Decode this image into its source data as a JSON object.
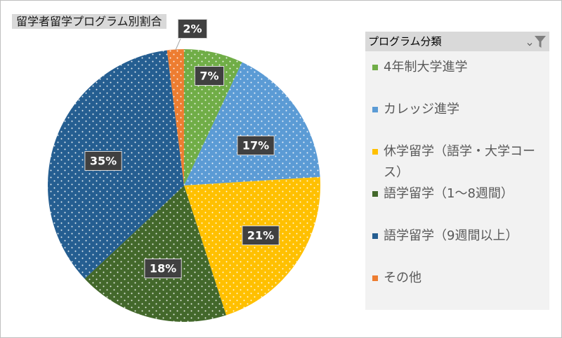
{
  "chart_data": {
    "type": "pie",
    "title": "留学者留学プログラム別割合",
    "categories": [
      "4年制大学進学",
      "カレッジ進学",
      "休学留学（語学・大学コース）",
      "語学留学（1～8週間）",
      "語学留学（9週間以上）",
      "その他"
    ],
    "values": [
      7,
      17,
      21,
      18,
      35,
      2
    ],
    "data_labels": [
      "7%",
      "17%",
      "21%",
      "18%",
      "35%",
      "2%"
    ],
    "colors": [
      "#70AD47",
      "#5B9BD5",
      "#FFC000",
      "#43682B",
      "#255E91",
      "#ED7D31"
    ],
    "legend_position": "right"
  },
  "legend": {
    "header": "プログラム分類",
    "dropdown_icon": "chevron-down-icon",
    "filter_icon": "filter-icon"
  }
}
